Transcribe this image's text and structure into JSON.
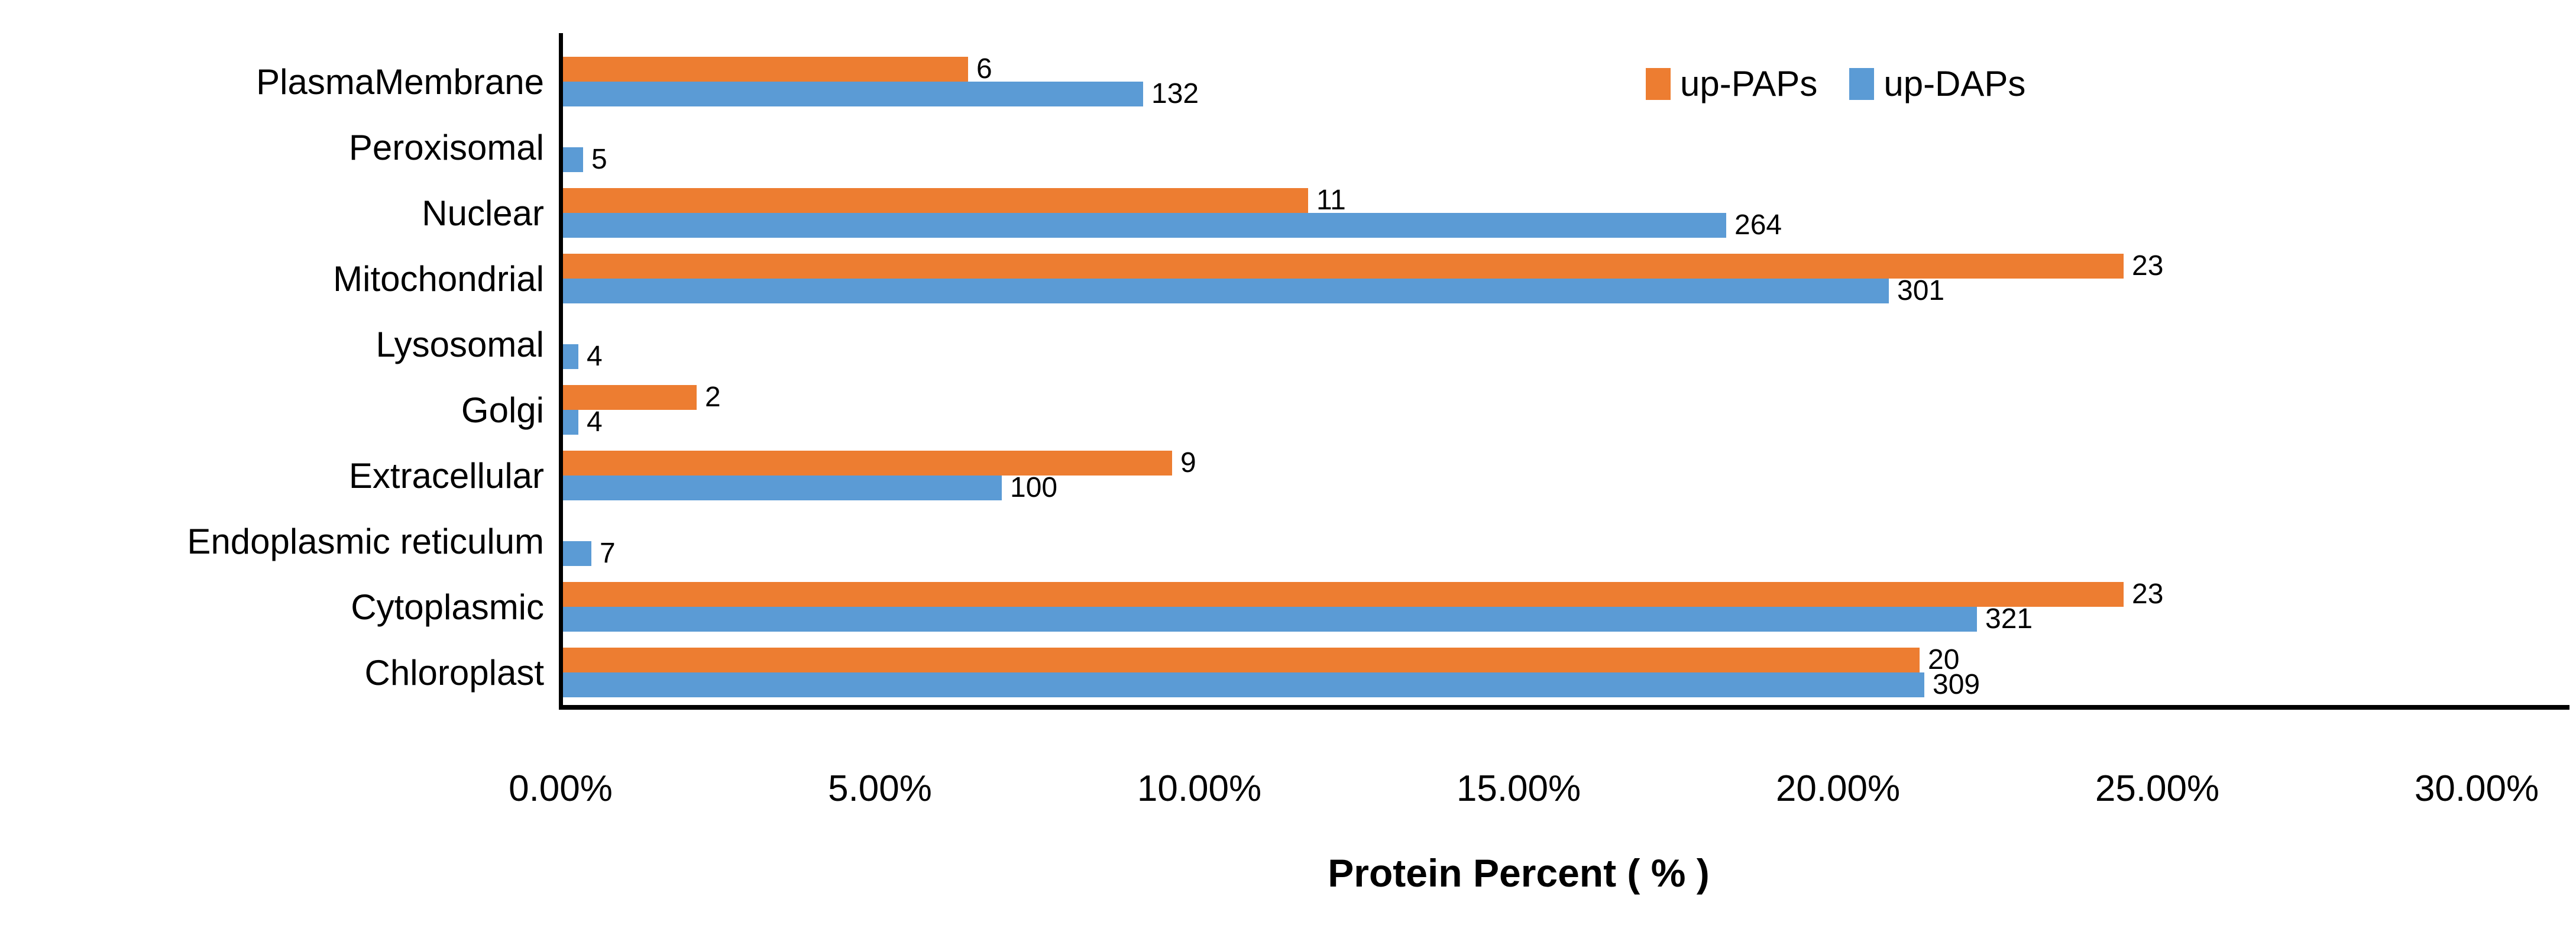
{
  "chart_data": {
    "type": "bar",
    "orientation": "horizontal",
    "xlabel": "Protein Percent ( % )",
    "x_axis": {
      "min": 0,
      "max": 30,
      "tick_labels": [
        "0.00%",
        "5.00%",
        "10.00%",
        "15.00%",
        "20.00%",
        "25.00%",
        "30.00%"
      ],
      "grid": false
    },
    "legend": {
      "position": "top-right",
      "entries": [
        {
          "name": "up-PAPs",
          "color": "#ED7D31"
        },
        {
          "name": "up-DAPs",
          "color": "#5B9BD5"
        }
      ]
    },
    "categories": [
      "PlasmaMembrane",
      "Peroxisomal",
      "Nuclear",
      "Mitochondrial",
      "Lysosomal",
      "Golgi",
      "Extracellular",
      "Endoplasmic reticulum",
      "Cytoplasmic",
      "Chloroplast"
    ],
    "series": [
      {
        "name": "up-PAPs",
        "color": "#ED7D31",
        "counts": [
          6,
          null,
          11,
          23,
          null,
          2,
          9,
          null,
          23,
          20
        ],
        "percent": [
          6.38,
          null,
          11.7,
          24.47,
          null,
          2.13,
          9.57,
          null,
          24.47,
          21.28
        ]
      },
      {
        "name": "up-DAPs",
        "color": "#5B9BD5",
        "counts": [
          132,
          5,
          264,
          301,
          4,
          4,
          100,
          7,
          321,
          309
        ],
        "percent": [
          9.12,
          0.35,
          18.25,
          20.8,
          0.28,
          0.28,
          6.91,
          0.48,
          22.18,
          21.35
        ]
      }
    ]
  }
}
